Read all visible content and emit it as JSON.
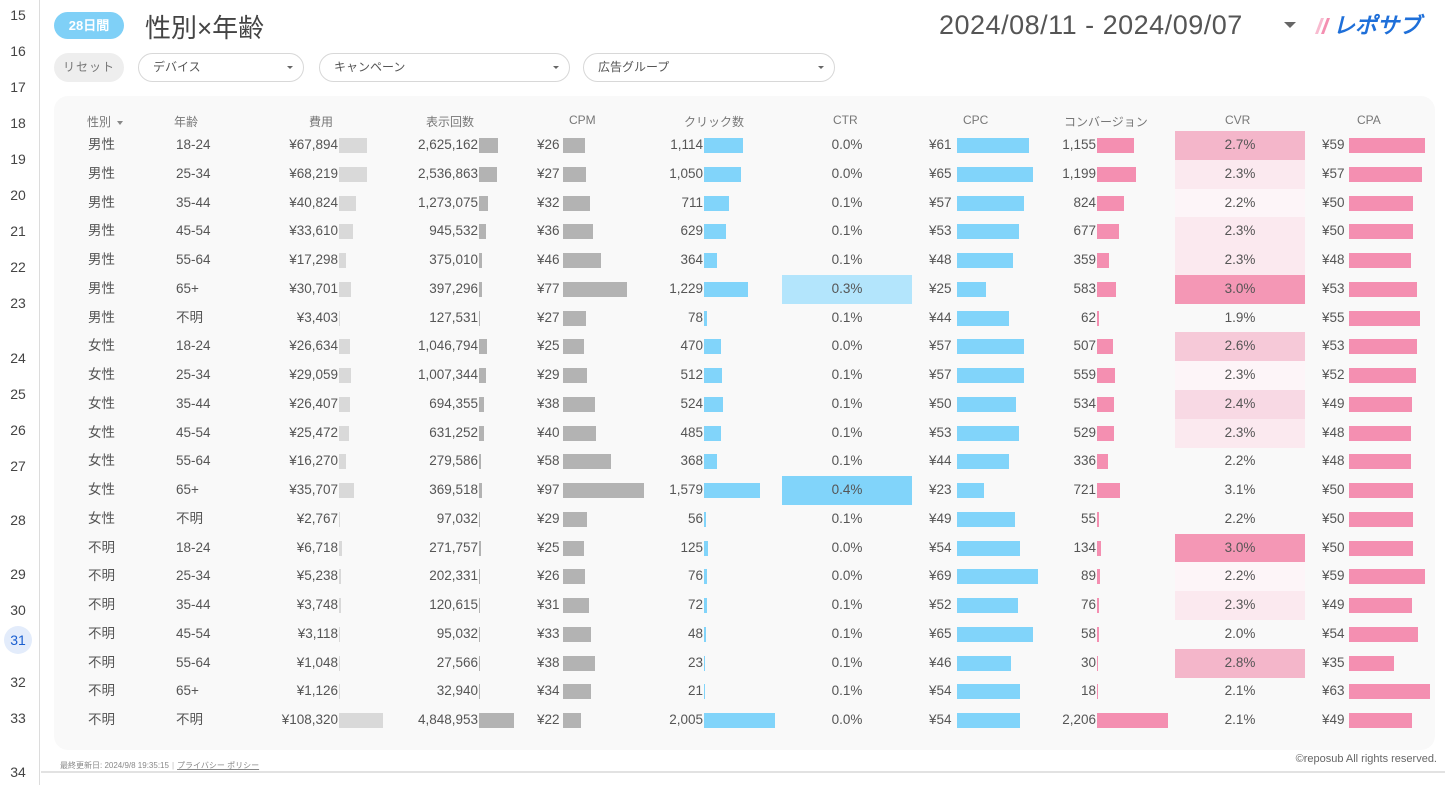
{
  "gutter": {
    "line_numbers": [
      "15",
      "16",
      "17",
      "18",
      "19",
      "20",
      "21",
      "22",
      "23",
      "24",
      "25",
      "26",
      "27",
      "28",
      "29",
      "30",
      "31",
      "32",
      "33",
      "34"
    ],
    "active": "31"
  },
  "header": {
    "period_badge": "28日間",
    "title": "性別×年齢",
    "date_range": "2024/08/11 - 2024/09/07",
    "logo_text": "レポサブ"
  },
  "filters": {
    "reset_label": "リセット",
    "device": "デバイス",
    "campaign": "キャンペーン",
    "ad_group": "広告グループ"
  },
  "colors": {
    "badge": "#7fd0f7",
    "gray_light_bar": "#d9d9d9",
    "gray_bar": "#b3b3b3",
    "blue_bar": "#81d4fa",
    "pink_bar": "#f48fb1",
    "ctr_high": "#81d4fa",
    "ctr_mid": "#b3e5fc",
    "cvr_scale": [
      "#fdf5f8",
      "#fbe9ef",
      "#f8d9e4",
      "#f6c9d8",
      "#f4b6ca",
      "#f497b5"
    ]
  },
  "table": {
    "columns": [
      "性別",
      "年齢",
      "費用",
      "表示回数",
      "CPM",
      "クリック数",
      "CTR",
      "CPC",
      "コンバージョン",
      "CVR",
      "CPA"
    ],
    "rows": [
      {
        "gender": "男性",
        "age": "18-24",
        "cost": "¥67,894",
        "cost_v": 67894,
        "imp": "2,625,162",
        "imp_v": 2625162,
        "cpm": "¥26",
        "cpm_v": 26,
        "clicks": "1,114",
        "clicks_v": 1114,
        "ctr": "0.0%",
        "ctr_level": 0,
        "cpc": "¥61",
        "cpc_v": 61,
        "cv": "1,155",
        "cv_v": 1155,
        "cvr": "2.7%",
        "cvr_level": 4,
        "cpa": "¥59",
        "cpa_v": 59
      },
      {
        "gender": "男性",
        "age": "25-34",
        "cost": "¥68,219",
        "cost_v": 68219,
        "imp": "2,536,863",
        "imp_v": 2536863,
        "cpm": "¥27",
        "cpm_v": 27,
        "clicks": "1,050",
        "clicks_v": 1050,
        "ctr": "0.0%",
        "ctr_level": 0,
        "cpc": "¥65",
        "cpc_v": 65,
        "cv": "1,199",
        "cv_v": 1199,
        "cvr": "2.3%",
        "cvr_level": 1,
        "cpa": "¥57",
        "cpa_v": 57
      },
      {
        "gender": "男性",
        "age": "35-44",
        "cost": "¥40,824",
        "cost_v": 40824,
        "imp": "1,273,075",
        "imp_v": 1273075,
        "cpm": "¥32",
        "cpm_v": 32,
        "clicks": "711",
        "clicks_v": 711,
        "ctr": "0.1%",
        "ctr_level": 0,
        "cpc": "¥57",
        "cpc_v": 57,
        "cv": "824",
        "cv_v": 824,
        "cvr": "2.2%",
        "cvr_level": 0,
        "cpa": "¥50",
        "cpa_v": 50
      },
      {
        "gender": "男性",
        "age": "45-54",
        "cost": "¥33,610",
        "cost_v": 33610,
        "imp": "945,532",
        "imp_v": 945532,
        "cpm": "¥36",
        "cpm_v": 36,
        "clicks": "629",
        "clicks_v": 629,
        "ctr": "0.1%",
        "ctr_level": 0,
        "cpc": "¥53",
        "cpc_v": 53,
        "cv": "677",
        "cv_v": 677,
        "cvr": "2.3%",
        "cvr_level": 1,
        "cpa": "¥50",
        "cpa_v": 50
      },
      {
        "gender": "男性",
        "age": "55-64",
        "cost": "¥17,298",
        "cost_v": 17298,
        "imp": "375,010",
        "imp_v": 375010,
        "cpm": "¥46",
        "cpm_v": 46,
        "clicks": "364",
        "clicks_v": 364,
        "ctr": "0.1%",
        "ctr_level": 0,
        "cpc": "¥48",
        "cpc_v": 48,
        "cv": "359",
        "cv_v": 359,
        "cvr": "2.3%",
        "cvr_level": 1,
        "cpa": "¥48",
        "cpa_v": 48
      },
      {
        "gender": "男性",
        "age": "65+",
        "cost": "¥30,701",
        "cost_v": 30701,
        "imp": "397,296",
        "imp_v": 397296,
        "cpm": "¥77",
        "cpm_v": 77,
        "clicks": "1,229",
        "clicks_v": 1229,
        "ctr": "0.3%",
        "ctr_level": 1,
        "cpc": "¥25",
        "cpc_v": 25,
        "cv": "583",
        "cv_v": 583,
        "cvr": "3.0%",
        "cvr_level": 5,
        "cpa": "¥53",
        "cpa_v": 53
      },
      {
        "gender": "男性",
        "age": "不明",
        "cost": "¥3,403",
        "cost_v": 3403,
        "imp": "127,531",
        "imp_v": 127531,
        "cpm": "¥27",
        "cpm_v": 27,
        "clicks": "78",
        "clicks_v": 78,
        "ctr": "0.1%",
        "ctr_level": 0,
        "cpc": "¥44",
        "cpc_v": 44,
        "cv": "62",
        "cv_v": 62,
        "cvr": "1.9%",
        "cvr_level": -1,
        "cpa": "¥55",
        "cpa_v": 55
      },
      {
        "gender": "女性",
        "age": "18-24",
        "cost": "¥26,634",
        "cost_v": 26634,
        "imp": "1,046,794",
        "imp_v": 1046794,
        "cpm": "¥25",
        "cpm_v": 25,
        "clicks": "470",
        "clicks_v": 470,
        "ctr": "0.0%",
        "ctr_level": 0,
        "cpc": "¥57",
        "cpc_v": 57,
        "cv": "507",
        "cv_v": 507,
        "cvr": "2.6%",
        "cvr_level": 3,
        "cpa": "¥53",
        "cpa_v": 53
      },
      {
        "gender": "女性",
        "age": "25-34",
        "cost": "¥29,059",
        "cost_v": 29059,
        "imp": "1,007,344",
        "imp_v": 1007344,
        "cpm": "¥29",
        "cpm_v": 29,
        "clicks": "512",
        "clicks_v": 512,
        "ctr": "0.1%",
        "ctr_level": 0,
        "cpc": "¥57",
        "cpc_v": 57,
        "cv": "559",
        "cv_v": 559,
        "cvr": "2.3%",
        "cvr_level": 0,
        "cpa": "¥52",
        "cpa_v": 52
      },
      {
        "gender": "女性",
        "age": "35-44",
        "cost": "¥26,407",
        "cost_v": 26407,
        "imp": "694,355",
        "imp_v": 694355,
        "cpm": "¥38",
        "cpm_v": 38,
        "clicks": "524",
        "clicks_v": 524,
        "ctr": "0.1%",
        "ctr_level": 0,
        "cpc": "¥50",
        "cpc_v": 50,
        "cv": "534",
        "cv_v": 534,
        "cvr": "2.4%",
        "cvr_level": 2,
        "cpa": "¥49",
        "cpa_v": 49
      },
      {
        "gender": "女性",
        "age": "45-54",
        "cost": "¥25,472",
        "cost_v": 25472,
        "imp": "631,252",
        "imp_v": 631252,
        "cpm": "¥40",
        "cpm_v": 40,
        "clicks": "485",
        "clicks_v": 485,
        "ctr": "0.1%",
        "ctr_level": 0,
        "cpc": "¥53",
        "cpc_v": 53,
        "cv": "529",
        "cv_v": 529,
        "cvr": "2.3%",
        "cvr_level": 1,
        "cpa": "¥48",
        "cpa_v": 48
      },
      {
        "gender": "女性",
        "age": "55-64",
        "cost": "¥16,270",
        "cost_v": 16270,
        "imp": "279,586",
        "imp_v": 279586,
        "cpm": "¥58",
        "cpm_v": 58,
        "clicks": "368",
        "clicks_v": 368,
        "ctr": "0.1%",
        "ctr_level": 0,
        "cpc": "¥44",
        "cpc_v": 44,
        "cv": "336",
        "cv_v": 336,
        "cvr": "2.2%",
        "cvr_level": -1,
        "cpa": "¥48",
        "cpa_v": 48
      },
      {
        "gender": "女性",
        "age": "65+",
        "cost": "¥35,707",
        "cost_v": 35707,
        "imp": "369,518",
        "imp_v": 369518,
        "cpm": "¥97",
        "cpm_v": 97,
        "clicks": "1,579",
        "clicks_v": 1579,
        "ctr": "0.4%",
        "ctr_level": 2,
        "cpc": "¥23",
        "cpc_v": 23,
        "cv": "721",
        "cv_v": 721,
        "cvr": "3.1%",
        "cvr_level": 6,
        "cpa": "¥50",
        "cpa_v": 50
      },
      {
        "gender": "女性",
        "age": "不明",
        "cost": "¥2,767",
        "cost_v": 2767,
        "imp": "97,032",
        "imp_v": 97032,
        "cpm": "¥29",
        "cpm_v": 29,
        "clicks": "56",
        "clicks_v": 56,
        "ctr": "0.1%",
        "ctr_level": 0,
        "cpc": "¥49",
        "cpc_v": 49,
        "cv": "55",
        "cv_v": 55,
        "cvr": "2.2%",
        "cvr_level": -1,
        "cpa": "¥50",
        "cpa_v": 50
      },
      {
        "gender": "不明",
        "age": "18-24",
        "cost": "¥6,718",
        "cost_v": 6718,
        "imp": "271,757",
        "imp_v": 271757,
        "cpm": "¥25",
        "cpm_v": 25,
        "clicks": "125",
        "clicks_v": 125,
        "ctr": "0.0%",
        "ctr_level": 0,
        "cpc": "¥54",
        "cpc_v": 54,
        "cv": "134",
        "cv_v": 134,
        "cvr": "3.0%",
        "cvr_level": 5,
        "cpa": "¥50",
        "cpa_v": 50
      },
      {
        "gender": "不明",
        "age": "25-34",
        "cost": "¥5,238",
        "cost_v": 5238,
        "imp": "202,331",
        "imp_v": 202331,
        "cpm": "¥26",
        "cpm_v": 26,
        "clicks": "76",
        "clicks_v": 76,
        "ctr": "0.0%",
        "ctr_level": 0,
        "cpc": "¥69",
        "cpc_v": 69,
        "cv": "89",
        "cv_v": 89,
        "cvr": "2.2%",
        "cvr_level": 0,
        "cpa": "¥59",
        "cpa_v": 59
      },
      {
        "gender": "不明",
        "age": "35-44",
        "cost": "¥3,748",
        "cost_v": 3748,
        "imp": "120,615",
        "imp_v": 120615,
        "cpm": "¥31",
        "cpm_v": 31,
        "clicks": "72",
        "clicks_v": 72,
        "ctr": "0.1%",
        "ctr_level": 0,
        "cpc": "¥52",
        "cpc_v": 52,
        "cv": "76",
        "cv_v": 76,
        "cvr": "2.3%",
        "cvr_level": 1,
        "cpa": "¥49",
        "cpa_v": 49
      },
      {
        "gender": "不明",
        "age": "45-54",
        "cost": "¥3,118",
        "cost_v": 3118,
        "imp": "95,032",
        "imp_v": 95032,
        "cpm": "¥33",
        "cpm_v": 33,
        "clicks": "48",
        "clicks_v": 48,
        "ctr": "0.1%",
        "ctr_level": 0,
        "cpc": "¥65",
        "cpc_v": 65,
        "cv": "58",
        "cv_v": 58,
        "cvr": "2.0%",
        "cvr_level": -1,
        "cpa": "¥54",
        "cpa_v": 54
      },
      {
        "gender": "不明",
        "age": "55-64",
        "cost": "¥1,048",
        "cost_v": 1048,
        "imp": "27,566",
        "imp_v": 27566,
        "cpm": "¥38",
        "cpm_v": 38,
        "clicks": "23",
        "clicks_v": 23,
        "ctr": "0.1%",
        "ctr_level": 0,
        "cpc": "¥46",
        "cpc_v": 46,
        "cv": "30",
        "cv_v": 30,
        "cvr": "2.8%",
        "cvr_level": 4,
        "cpa": "¥35",
        "cpa_v": 35
      },
      {
        "gender": "不明",
        "age": "65+",
        "cost": "¥1,126",
        "cost_v": 1126,
        "imp": "32,940",
        "imp_v": 32940,
        "cpm": "¥34",
        "cpm_v": 34,
        "clicks": "21",
        "clicks_v": 21,
        "ctr": "0.1%",
        "ctr_level": 0,
        "cpc": "¥54",
        "cpc_v": 54,
        "cv": "18",
        "cv_v": 18,
        "cvr": "2.1%",
        "cvr_level": -1,
        "cpa": "¥63",
        "cpa_v": 63
      },
      {
        "gender": "不明",
        "age": "不明",
        "cost": "¥108,320",
        "cost_v": 108320,
        "imp": "4,848,953",
        "imp_v": 4848953,
        "cpm": "¥22",
        "cpm_v": 22,
        "clicks": "2,005",
        "clicks_v": 2005,
        "ctr": "0.0%",
        "ctr_level": 0,
        "cpc": "¥54",
        "cpc_v": 54,
        "cv": "2,206",
        "cv_v": 2206,
        "cvr": "2.1%",
        "cvr_level": -1,
        "cpa": "¥49",
        "cpa_v": 49
      }
    ]
  },
  "footer": {
    "last_updated": "最終更新日: 2024/9/8 19:35:15",
    "separator": "|",
    "privacy": "プライバシー ポリシー",
    "copyright": "©reposub All rights reserved."
  }
}
